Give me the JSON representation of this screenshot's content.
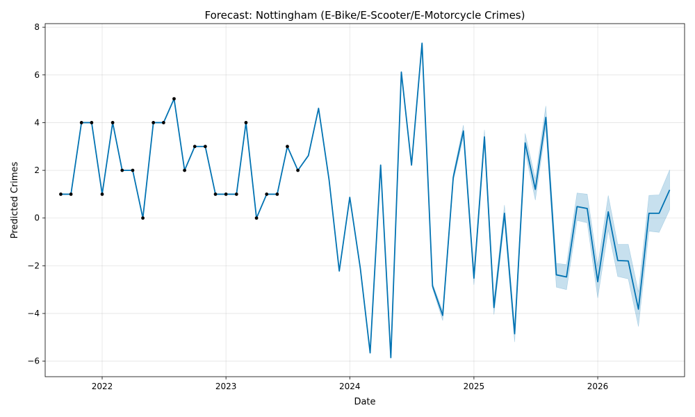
{
  "chart_data": {
    "type": "line",
    "title": "Forecast: Nottingham (E-Bike/E-Scooter/E-Motorcycle Crimes)",
    "xlabel": "Date",
    "ylabel": "Predicted Crimes",
    "xlim": [
      "2021-07-17",
      "2026-09-14"
    ],
    "ylim": [
      -6.65,
      8.15
    ],
    "grid": true,
    "x_ticks": [
      {
        "date": "2022-01-01",
        "label": "2022"
      },
      {
        "date": "2023-01-01",
        "label": "2023"
      },
      {
        "date": "2024-01-01",
        "label": "2024"
      },
      {
        "date": "2025-01-01",
        "label": "2025"
      },
      {
        "date": "2026-01-01",
        "label": "2026"
      }
    ],
    "y_ticks": [
      {
        "value": -6,
        "label": "−6"
      },
      {
        "value": -4,
        "label": "−4"
      },
      {
        "value": -2,
        "label": "−2"
      },
      {
        "value": 0,
        "label": "0"
      },
      {
        "value": 2,
        "label": "2"
      },
      {
        "value": 4,
        "label": "4"
      },
      {
        "value": 6,
        "label": "6"
      },
      {
        "value": 8,
        "label": "8"
      }
    ],
    "colors": {
      "forecast": "#0072b2",
      "observed": "#000000",
      "interval": "#0072b2"
    },
    "series": [
      {
        "kind": "observed",
        "x": [
          "2021-09-01",
          "2021-10-01",
          "2021-11-01",
          "2021-12-01",
          "2022-01-01",
          "2022-02-01",
          "2022-03-01",
          "2022-04-01",
          "2022-05-01",
          "2022-06-01",
          "2022-07-01",
          "2022-08-01",
          "2022-09-01",
          "2022-10-01",
          "2022-11-01",
          "2022-12-01",
          "2023-01-01",
          "2023-02-01",
          "2023-03-01",
          "2023-04-01",
          "2023-05-01",
          "2023-06-01",
          "2023-07-01",
          "2023-08-01"
        ],
        "y": [
          1,
          1,
          4,
          4,
          1,
          4,
          2,
          2,
          0,
          4,
          4,
          5,
          2,
          3,
          3,
          1,
          1,
          1,
          4,
          0,
          1,
          1,
          3,
          2
        ]
      },
      {
        "kind": "forecast",
        "x": [
          "2021-09-01",
          "2021-10-01",
          "2021-11-01",
          "2021-12-01",
          "2022-01-01",
          "2022-02-01",
          "2022-03-01",
          "2022-04-01",
          "2022-05-01",
          "2022-06-01",
          "2022-07-01",
          "2022-08-01",
          "2022-09-01",
          "2022-10-01",
          "2022-11-01",
          "2022-12-01",
          "2023-01-01",
          "2023-02-01",
          "2023-03-01",
          "2023-04-01",
          "2023-05-01",
          "2023-06-01",
          "2023-07-01",
          "2023-08-01",
          "2023-09-01",
          "2023-10-01",
          "2023-11-01",
          "2023-12-01",
          "2024-01-01",
          "2024-02-01",
          "2024-03-01",
          "2024-04-01",
          "2024-05-01",
          "2024-06-01",
          "2024-07-01",
          "2024-08-01",
          "2024-09-01",
          "2024-10-01",
          "2024-11-01",
          "2024-12-01",
          "2025-01-01",
          "2025-02-01",
          "2025-03-01",
          "2025-04-01",
          "2025-05-01",
          "2025-06-01",
          "2025-07-01",
          "2025-08-01",
          "2025-09-01",
          "2025-10-01",
          "2025-11-01",
          "2025-12-01",
          "2026-01-01",
          "2026-02-01",
          "2026-03-01",
          "2026-04-01",
          "2026-05-01",
          "2026-06-01",
          "2026-07-01",
          "2026-08-01"
        ],
        "y": [
          1.0,
          1.0,
          4.0,
          4.0,
          1.0,
          4.0,
          2.0,
          2.0,
          0.0,
          4.0,
          4.0,
          5.0,
          2.0,
          3.0,
          3.0,
          1.0,
          1.0,
          1.0,
          4.0,
          0.0,
          1.0,
          1.0,
          3.0,
          2.0,
          2.62,
          4.6,
          1.6,
          -2.22,
          0.87,
          -2.1,
          -5.65,
          2.22,
          -5.85,
          6.12,
          2.22,
          7.33,
          -2.85,
          -4.08,
          1.7,
          3.65,
          -2.52,
          3.4,
          -3.75,
          0.2,
          -4.85,
          3.15,
          1.2,
          4.22,
          -2.38,
          -2.47,
          0.48,
          0.4,
          -2.67,
          0.26,
          -1.78,
          -1.8,
          -3.82,
          0.2,
          0.2,
          1.18
        ],
        "lower": [
          1.0,
          1.0,
          4.0,
          4.0,
          1.0,
          4.0,
          2.0,
          2.0,
          0.0,
          4.0,
          4.0,
          5.0,
          2.0,
          3.0,
          3.0,
          1.0,
          1.0,
          1.0,
          4.0,
          0.0,
          1.0,
          1.0,
          3.0,
          2.0,
          2.62,
          4.6,
          1.6,
          -2.22,
          0.87,
          -2.1,
          -5.65,
          2.22,
          -5.85,
          6.12,
          2.22,
          7.33,
          -2.95,
          -4.3,
          1.55,
          3.4,
          -2.8,
          3.1,
          -4.05,
          -0.1,
          -5.2,
          2.8,
          0.75,
          3.8,
          -2.9,
          -3.0,
          -0.1,
          -0.2,
          -3.35,
          -0.5,
          -2.45,
          -2.55,
          -4.55,
          -0.55,
          -0.6,
          0.35
        ],
        "upper": [
          1.0,
          1.0,
          4.0,
          4.0,
          1.0,
          4.0,
          2.0,
          2.0,
          0.0,
          4.0,
          4.0,
          5.0,
          2.0,
          3.0,
          3.0,
          1.0,
          1.0,
          1.0,
          4.0,
          0.0,
          1.0,
          1.0,
          3.0,
          2.0,
          2.62,
          4.6,
          1.6,
          -2.22,
          0.87,
          -2.1,
          -5.65,
          2.22,
          -5.85,
          6.12,
          2.22,
          7.33,
          -2.75,
          -3.9,
          1.85,
          3.9,
          -2.25,
          3.7,
          -3.45,
          0.55,
          -4.55,
          3.55,
          1.65,
          4.7,
          -1.9,
          -1.95,
          1.05,
          1.0,
          -2.0,
          0.95,
          -1.1,
          -1.1,
          -3.1,
          0.95,
          0.97,
          2.02
        ]
      }
    ]
  }
}
